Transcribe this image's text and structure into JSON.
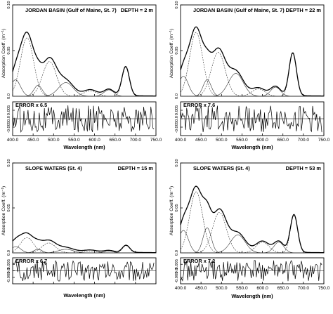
{
  "chart_data": [
    {
      "type": "line",
      "title": "JORDAN BASIN (Gulf of Maine, St. 7)",
      "depth_label": "DEPTH = 2 m",
      "ylabel": "Absorption Coeff. (m⁻¹)",
      "xlabel": "Wavelength (nm)",
      "xlim": [
        400,
        750
      ],
      "ylim": [
        0,
        0.1
      ],
      "yticks": [
        "0.0",
        "0.05",
        "0.10"
      ],
      "xticks": [
        "400.0",
        "450.0",
        "500.0",
        "550.0",
        "600.0",
        "650.0",
        "700.0",
        "750.0"
      ],
      "show_xticklabels": true,
      "gaussians": [
        {
          "center": 407,
          "amp": 0.018,
          "sigma": 12
        },
        {
          "center": 435,
          "amp": 0.064,
          "sigma": 16
        },
        {
          "center": 462,
          "amp": 0.012,
          "sigma": 10
        },
        {
          "center": 490,
          "amp": 0.038,
          "sigma": 17
        },
        {
          "center": 530,
          "amp": 0.015,
          "sigma": 18
        },
        {
          "center": 590,
          "amp": 0.006,
          "sigma": 16
        },
        {
          "center": 635,
          "amp": 0.007,
          "sigma": 12
        },
        {
          "center": 676,
          "amp": 0.032,
          "sigma": 9
        }
      ],
      "residual": {
        "label": "ERROR x 6.5",
        "yticks": [
          "0.005",
          "0.0",
          "-0.005"
        ],
        "ylim": [
          -0.01,
          0.01
        ]
      }
    },
    {
      "type": "line",
      "title": "JORDAN BASIN (Gulf of Maine, St. 7)",
      "depth_label": "DEPTH = 22 m",
      "ylabel": "Absorption Coeff. (m⁻¹)",
      "xlabel": "Wavelength (nm)",
      "xlim": [
        400,
        750
      ],
      "ylim": [
        0,
        0.1
      ],
      "yticks": [
        "0.0",
        "0.05",
        "0.10"
      ],
      "xticks": [
        "400.0",
        "450.0",
        "500.0",
        "550.0",
        "600.0",
        "650.0",
        "700.0",
        "750.0"
      ],
      "show_xticklabels": true,
      "gaussians": [
        {
          "center": 407,
          "amp": 0.022,
          "sigma": 12
        },
        {
          "center": 438,
          "amp": 0.07,
          "sigma": 16
        },
        {
          "center": 465,
          "amp": 0.018,
          "sigma": 10
        },
        {
          "center": 492,
          "amp": 0.048,
          "sigma": 17
        },
        {
          "center": 535,
          "amp": 0.025,
          "sigma": 18
        },
        {
          "center": 590,
          "amp": 0.008,
          "sigma": 16
        },
        {
          "center": 632,
          "amp": 0.01,
          "sigma": 12
        },
        {
          "center": 674,
          "amp": 0.047,
          "sigma": 9
        }
      ],
      "residual": {
        "label": "ERROR x 7.6",
        "yticks": [
          "0.005",
          "0.0",
          "-0.005"
        ],
        "ylim": [
          -0.01,
          0.01
        ]
      }
    },
    {
      "type": "line",
      "title": "SLOPE WATERS (St. 4)",
      "depth_label": "DEPTH = 15 m",
      "ylabel": "Absorption Coeff. (m⁻¹)",
      "xlabel": "Wavelength (nm)",
      "xlim": [
        400,
        750
      ],
      "ylim": [
        0,
        0.1
      ],
      "yticks": [
        "0.0",
        "0.05",
        "0.10"
      ],
      "xticks": [
        "400.0",
        "450.0",
        "500.0",
        "550.0",
        "600.0",
        "650.0",
        "700.0",
        "750.0"
      ],
      "show_xticklabels": false,
      "gaussians": [
        {
          "center": 408,
          "amp": 0.007,
          "sigma": 12
        },
        {
          "center": 435,
          "amp": 0.017,
          "sigma": 16
        },
        {
          "center": 462,
          "amp": 0.004,
          "sigma": 10
        },
        {
          "center": 488,
          "amp": 0.011,
          "sigma": 17
        },
        {
          "center": 530,
          "amp": 0.004,
          "sigma": 18
        },
        {
          "center": 590,
          "amp": 0.002,
          "sigma": 16
        },
        {
          "center": 635,
          "amp": 0.002,
          "sigma": 12
        },
        {
          "center": 677,
          "amp": 0.008,
          "sigma": 9
        }
      ],
      "residual": {
        "label": "ERROR x 6.7",
        "yticks": [
          "0.005",
          "0.0",
          "-0.005"
        ],
        "ylim": [
          -0.01,
          0.01
        ]
      }
    },
    {
      "type": "line",
      "title": "SLOPE WATERS (St. 4)",
      "depth_label": "DEPTH = 53 m",
      "ylabel": "Absorption Coeff. (m⁻¹)",
      "xlabel": "Wavelength (nm)",
      "xlim": [
        400,
        750
      ],
      "ylim": [
        0,
        0.1
      ],
      "yticks": [
        "0.0",
        "0.05",
        "0.10"
      ],
      "xticks": [
        "400.0",
        "450.0",
        "500.0",
        "550.0",
        "600.0",
        "650.0",
        "700.0",
        "750.0"
      ],
      "show_xticklabels": true,
      "gaussians": [
        {
          "center": 407,
          "amp": 0.025,
          "sigma": 12
        },
        {
          "center": 438,
          "amp": 0.068,
          "sigma": 16
        },
        {
          "center": 465,
          "amp": 0.028,
          "sigma": 10
        },
        {
          "center": 495,
          "amp": 0.045,
          "sigma": 17
        },
        {
          "center": 540,
          "amp": 0.02,
          "sigma": 18
        },
        {
          "center": 600,
          "amp": 0.012,
          "sigma": 16
        },
        {
          "center": 640,
          "amp": 0.012,
          "sigma": 12
        },
        {
          "center": 677,
          "amp": 0.042,
          "sigma": 9
        }
      ],
      "residual": {
        "label": "ERROR x 7.2",
        "yticks": [
          "0.005",
          "0.0",
          "-0.005"
        ],
        "ylim": [
          -0.01,
          0.01
        ]
      }
    }
  ]
}
